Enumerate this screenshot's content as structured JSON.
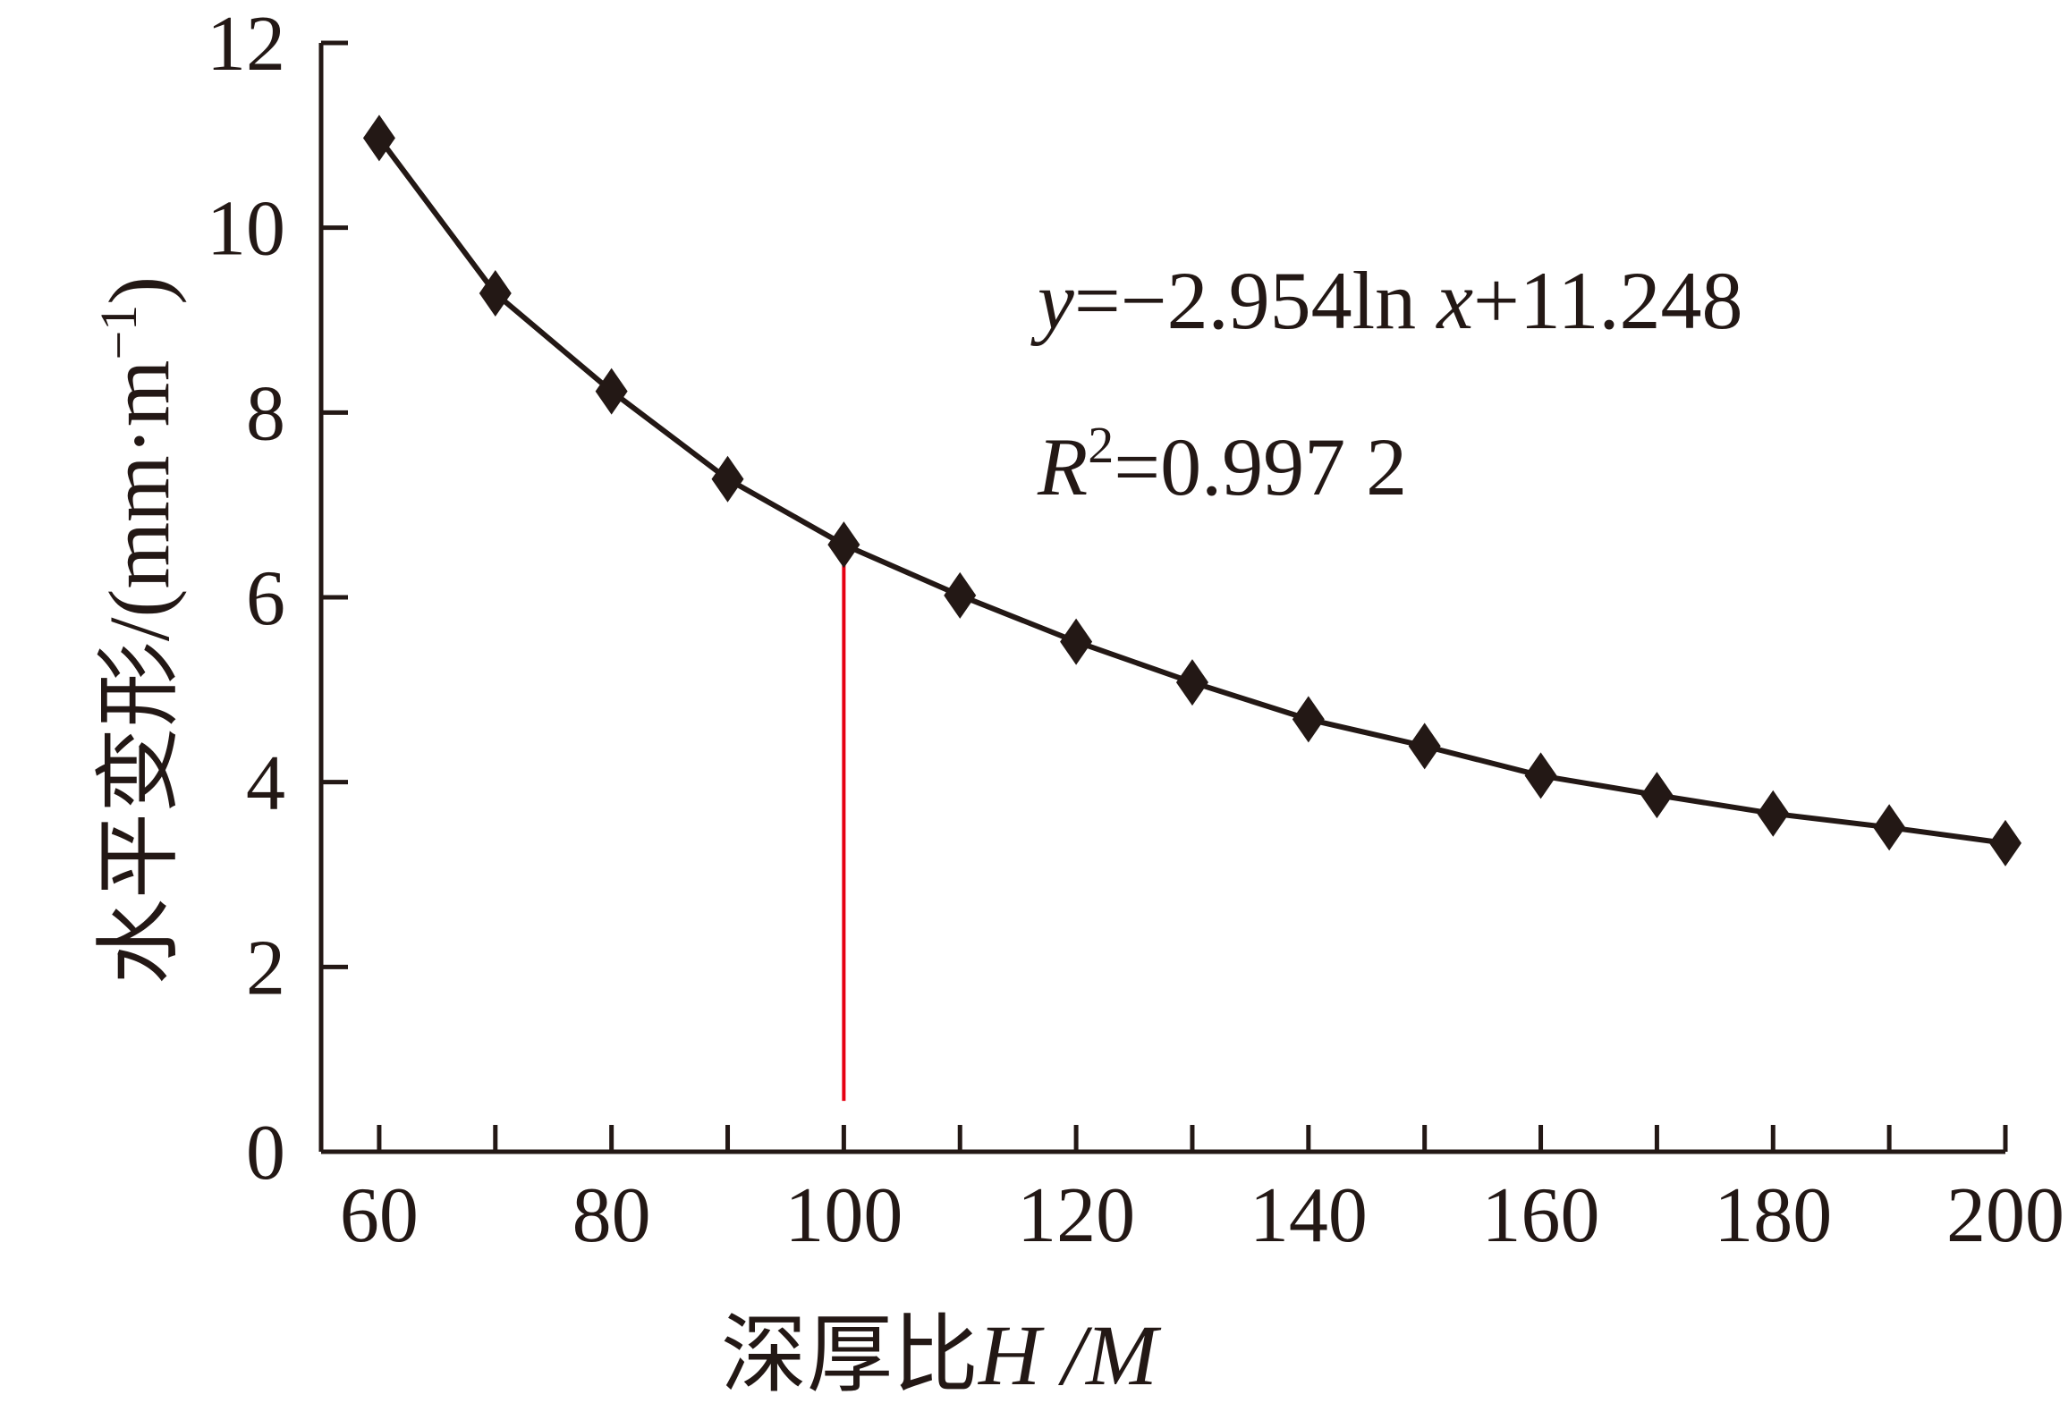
{
  "chart_data": {
    "type": "line",
    "x": [
      60,
      70,
      80,
      90,
      100,
      110,
      120,
      130,
      140,
      150,
      160,
      170,
      180,
      190,
      200
    ],
    "series": [
      {
        "values": [
          10.97,
          9.29,
          8.23,
          7.28,
          6.57,
          6.02,
          5.52,
          5.08,
          4.68,
          4.39,
          4.07,
          3.86,
          3.66,
          3.51,
          3.34
        ]
      }
    ],
    "marker": "diamond",
    "line_color": "#231815",
    "xlim": [
      55,
      200
    ],
    "ylim": [
      0,
      12
    ],
    "x_ticks": [
      "60",
      "80",
      "100",
      "120",
      "140",
      "160",
      "180",
      "200"
    ],
    "y_ticks": [
      "0",
      "2",
      "4",
      "6",
      "8",
      "10",
      "12"
    ],
    "xlabel": {
      "text": "深厚比",
      "var_1": "H",
      "sep": " /",
      "var_2": "M"
    },
    "ylabel": "水平变形/(mm·m",
    "ylabel_sup": "−1",
    "ylabel_close": ")",
    "equation": {
      "y": "y",
      "mid": "=−2.954ln ",
      "x": "x",
      "tail": "+11.248"
    },
    "r_squared": {
      "r": "R",
      "sup": "2",
      "value": "=0.997 2"
    },
    "reference_line": {
      "x": 100,
      "y_from": 0.55,
      "y_to": 6.57,
      "color": "#e60012"
    },
    "grid": false,
    "legend": "none"
  }
}
